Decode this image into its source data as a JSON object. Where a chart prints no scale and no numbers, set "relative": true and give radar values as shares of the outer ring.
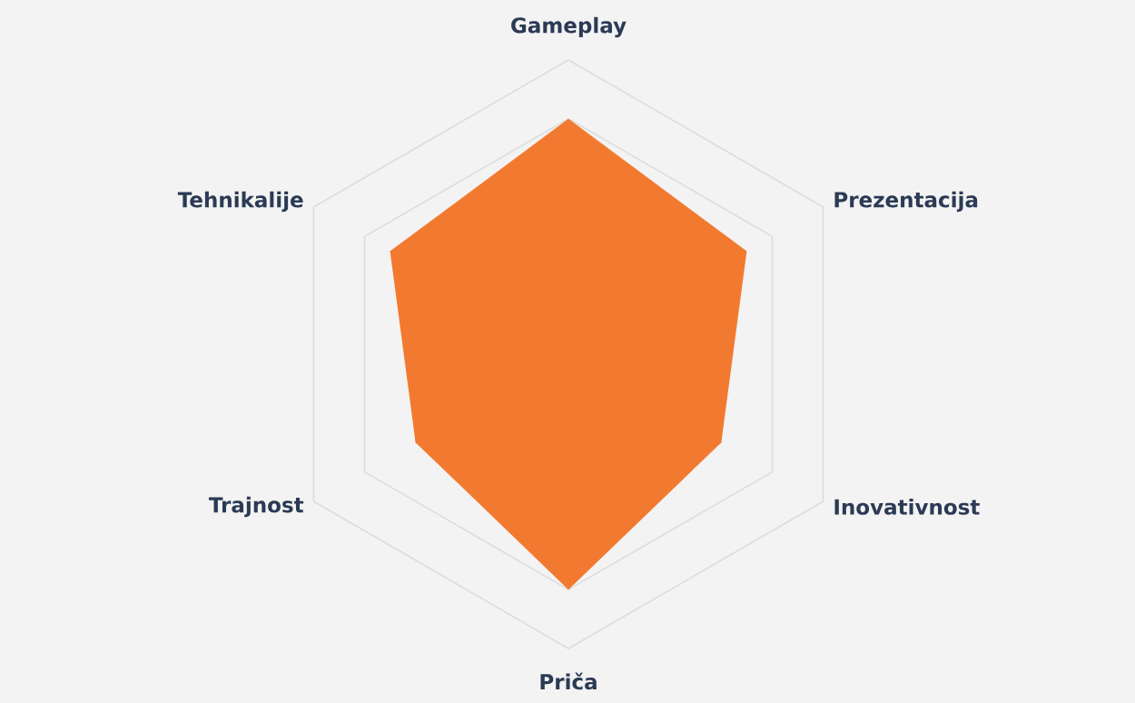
{
  "chart_data": {
    "type": "radar",
    "relative": true,
    "grid": true,
    "categories": [
      "Gameplay",
      "Prezentacija",
      "Inovativnost",
      "Priča",
      "Trajnost",
      "Tehnikalije"
    ],
    "series": [
      {
        "color": "#f27a30",
        "values": [
          0.8,
          0.7,
          0.6,
          0.8,
          0.6,
          0.7
        ]
      }
    ]
  }
}
